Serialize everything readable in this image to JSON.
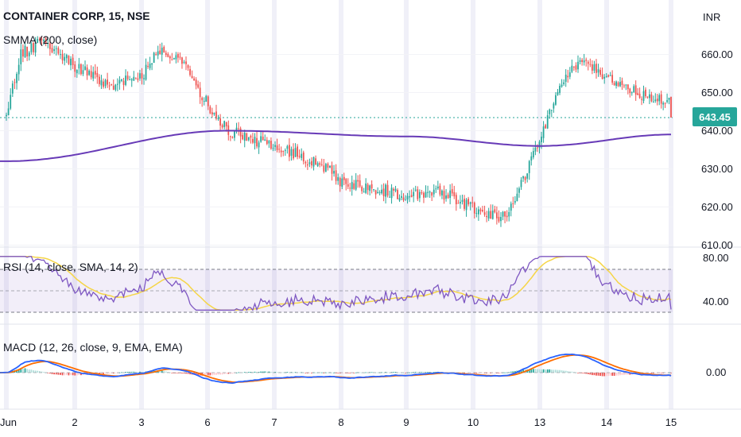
{
  "header": {
    "title": "CONTAINER CORP, 15, NSE",
    "indicator": "SMMA (200, close)"
  },
  "axis": {
    "currency": "INR",
    "price_ticks": [
      "660.00",
      "650.00",
      "640.00",
      "630.00",
      "620.00",
      "610.00"
    ],
    "last_price": "643.45"
  },
  "rsi": {
    "label": "RSI (14, close, SMA, 14, 2)",
    "ticks": [
      "80.00",
      "40.00"
    ]
  },
  "macd": {
    "label": "MACD (12, 26, close, 9, EMA, EMA)",
    "ticks": [
      "0.00"
    ]
  },
  "xaxis": {
    "ticks": [
      "Jun",
      "2",
      "3",
      "6",
      "7",
      "8",
      "9",
      "10",
      "13",
      "14",
      "15"
    ]
  },
  "colors": {
    "up": "#26a69a",
    "down": "#ef5350",
    "smma": "#673ab7",
    "rsi": "#7e57c2",
    "rsi_ma": "#f5d547",
    "macd": "#2962ff",
    "signal": "#ff6d00",
    "price_tag": "#26a69a"
  },
  "chart_data": {
    "type": "candlestick",
    "symbol": "CONTAINER CORP",
    "interval": "15",
    "exchange": "NSE",
    "currency": "INR",
    "last_price": 643.45,
    "price_range": [
      608,
      670
    ],
    "sessions": [
      "Jun",
      "2",
      "3",
      "6",
      "7",
      "8",
      "9",
      "10",
      "13",
      "14",
      "15"
    ],
    "close_path": [
      [
        0,
        644
      ],
      [
        0.2,
        660
      ],
      [
        0.5,
        663
      ],
      [
        1.0,
        657
      ],
      [
        1.5,
        652
      ],
      [
        2.0,
        654
      ],
      [
        2.3,
        662
      ],
      [
        2.6,
        658
      ],
      [
        3.0,
        647
      ],
      [
        3.3,
        640
      ],
      [
        3.8,
        637
      ],
      [
        4.3,
        634
      ],
      [
        4.8,
        630
      ],
      [
        5.0,
        626
      ],
      [
        5.5,
        625
      ],
      [
        6.0,
        623
      ],
      [
        6.5,
        624
      ],
      [
        7.0,
        620
      ],
      [
        7.5,
        617
      ],
      [
        8.0,
        637
      ],
      [
        8.3,
        652
      ],
      [
        8.6,
        658
      ],
      [
        9.0,
        654
      ],
      [
        9.5,
        650
      ],
      [
        10.0,
        647
      ],
      [
        10.3,
        641
      ],
      [
        10.7,
        639
      ],
      [
        11.0,
        642
      ],
      [
        11.5,
        640
      ],
      [
        12.0,
        644
      ],
      [
        12.4,
        641
      ],
      [
        12.8,
        642
      ],
      [
        13.0,
        643.45
      ]
    ],
    "smma": [
      [
        0,
        632
      ],
      [
        3.3,
        640
      ],
      [
        6.0,
        638.5
      ],
      [
        8.0,
        636
      ],
      [
        10.0,
        639
      ],
      [
        13.0,
        640
      ]
    ],
    "rsi": {
      "range": [
        30,
        90
      ],
      "bands": [
        70,
        50,
        30
      ],
      "ticks": [
        80,
        40
      ]
    },
    "macd": {
      "zero": 0,
      "ticks": [
        0
      ]
    }
  }
}
